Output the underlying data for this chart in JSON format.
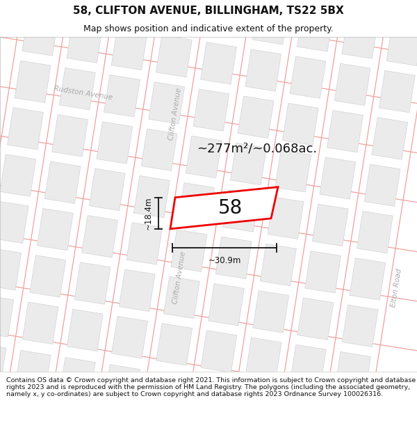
{
  "title": "58, CLIFTON AVENUE, BILLINGHAM, TS22 5BX",
  "subtitle": "Map shows position and indicative extent of the property.",
  "footer": "Contains OS data © Crown copyright and database right 2021. This information is subject to Crown copyright and database rights 2023 and is reproduced with the permission of HM Land Registry. The polygons (including the associated geometry, namely x, y co-ordinates) are subject to Crown copyright and database rights 2023 Ordnance Survey 100026316.",
  "area_label": "~277m²/~0.068ac.",
  "width_label": "~30.9m",
  "height_label": "~18.4m",
  "property_number": "58",
  "map_bg": "#ffffff",
  "block_color": "#ebebeb",
  "block_edge_color": "#cccccc",
  "road_line_color": "#f0a0a0",
  "road_line_color2": "#d08080",
  "property_outline_color": "#ee0000",
  "property_fill": "#ffffff",
  "dim_line_color": "#111111",
  "text_color": "#111111",
  "street_label_color": "#aaaaaa",
  "title_fontsize": 11,
  "subtitle_fontsize": 9,
  "footer_fontsize": 6.8,
  "map_xlim": [
    0,
    600
  ],
  "map_ylim": [
    0,
    480
  ]
}
